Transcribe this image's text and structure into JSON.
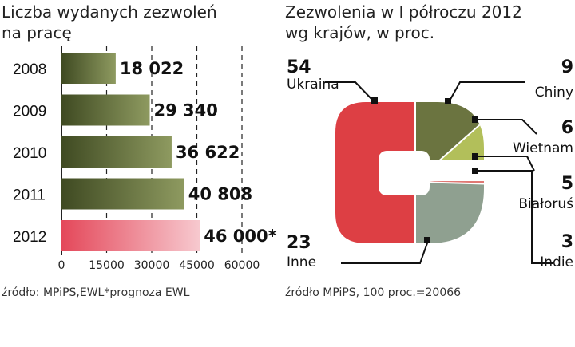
{
  "colors": {
    "bar_dark": "#3f4a22",
    "bar_light": "#8e9a60",
    "bar_highlight": "#e4485a",
    "ukraina": "#dd3f44",
    "chiny": "#6b7440",
    "wietnam": "#b2bf5a",
    "bialorus": "#c9a97e",
    "indie": "#e07873",
    "inne": "#8fa090",
    "axis_dash": "#222222"
  },
  "chart_data": [
    {
      "type": "bar",
      "orientation": "horizontal",
      "title": "Liczba wydanych zezwoleń na pracę",
      "categories": [
        "2008",
        "2009",
        "2010",
        "2011",
        "2012"
      ],
      "values": [
        18022,
        29340,
        36622,
        40808,
        46000
      ],
      "value_labels": [
        "18 022",
        "29 340",
        "36 622",
        "40 808",
        "46 000*"
      ],
      "highlight_index": 4,
      "xlim": [
        0,
        60000
      ],
      "xticks": [
        "0",
        "15000",
        "30000",
        "45000",
        "60000"
      ],
      "xtick_values": [
        0,
        15000,
        30000,
        45000,
        60000
      ],
      "grid": "vertical dashed",
      "source": "źródło: MPiPS,EWL*prognoza EWL"
    },
    {
      "type": "pie",
      "title": "Zezwolenia w I półroczu 2012 wg krajów, w proc.",
      "labels": [
        "Ukraina",
        "Chiny",
        "Wietnam",
        "Białoruś",
        "Indie",
        "Inne"
      ],
      "values": [
        54,
        9,
        6,
        5,
        3,
        23
      ],
      "value_labels": [
        "54",
        "9",
        "6",
        "5",
        "3",
        "23"
      ],
      "source": "źródło MPiPS, 100 proc.=20066"
    }
  ],
  "left_title_lines": [
    "Liczba wydanych zezwoleń",
    "na pracę"
  ],
  "right_title_lines": [
    "Zezwolenia w I półroczu 2012",
    "wg krajów, w proc."
  ]
}
